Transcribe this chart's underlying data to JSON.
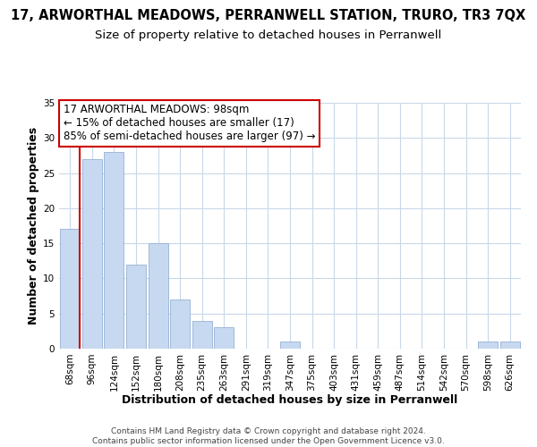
{
  "title": "17, ARWORTHAL MEADOWS, PERRANWELL STATION, TRURO, TR3 7QX",
  "subtitle": "Size of property relative to detached houses in Perranwell",
  "xlabel": "Distribution of detached houses by size in Perranwell",
  "ylabel": "Number of detached properties",
  "footer_line1": "Contains HM Land Registry data © Crown copyright and database right 2024.",
  "footer_line2": "Contains public sector information licensed under the Open Government Licence v3.0.",
  "annotation_line1": "17 ARWORTHAL MEADOWS: 98sqm",
  "annotation_line2": "← 15% of detached houses are smaller (17)",
  "annotation_line3": "85% of semi-detached houses are larger (97) →",
  "bar_labels": [
    "68sqm",
    "96sqm",
    "124sqm",
    "152sqm",
    "180sqm",
    "208sqm",
    "235sqm",
    "263sqm",
    "291sqm",
    "319sqm",
    "347sqm",
    "375sqm",
    "403sqm",
    "431sqm",
    "459sqm",
    "487sqm",
    "514sqm",
    "542sqm",
    "570sqm",
    "598sqm",
    "626sqm"
  ],
  "bar_values": [
    17,
    27,
    28,
    12,
    15,
    7,
    4,
    3,
    0,
    0,
    1,
    0,
    0,
    0,
    0,
    0,
    0,
    0,
    0,
    1,
    1
  ],
  "bar_color": "#c7d9f0",
  "bar_edge_color": "#a0b8d8",
  "red_line_index": 0,
  "red_line_color": "#cc0000",
  "ylim": [
    0,
    35
  ],
  "yticks": [
    0,
    5,
    10,
    15,
    20,
    25,
    30,
    35
  ],
  "background_color": "#ffffff",
  "grid_color": "#c8d8e8",
  "annotation_box_edge_color": "#cc0000",
  "title_fontsize": 10.5,
  "subtitle_fontsize": 9.5,
  "axis_label_fontsize": 9,
  "tick_fontsize": 7.5,
  "annotation_fontsize": 8.5,
  "footer_fontsize": 6.5
}
